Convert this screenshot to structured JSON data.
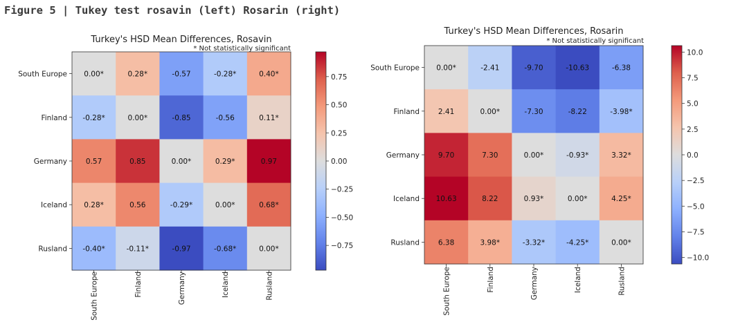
{
  "figure_title": "Figure 5 | Tukey test rosavin (left) Rosarin (right)",
  "chart_data": [
    {
      "type": "heatmap",
      "title": "Turkey's HSD Mean Differences, Rosavin",
      "subtitle": "* Not statistically significant",
      "rows": [
        "South Europe",
        "Finland",
        "Germany",
        "Iceland",
        "Rusland"
      ],
      "cols": [
        "South Europe",
        "Finland",
        "Germany",
        "Iceland",
        "Rusland"
      ],
      "values": [
        [
          0.0,
          0.28,
          -0.57,
          -0.28,
          0.4
        ],
        [
          -0.28,
          0.0,
          -0.85,
          -0.56,
          0.11
        ],
        [
          0.57,
          0.85,
          0.0,
          0.29,
          0.97
        ],
        [
          0.28,
          0.56,
          -0.29,
          0.0,
          0.68
        ],
        [
          -0.4,
          -0.11,
          -0.97,
          -0.68,
          0.0
        ]
      ],
      "labels": [
        [
          "0.00*",
          "0.28*",
          "-0.57",
          "-0.28*",
          "0.40*"
        ],
        [
          "-0.28*",
          "0.00*",
          "-0.85",
          "-0.56",
          "0.11*"
        ],
        [
          "0.57",
          "0.85",
          "0.00*",
          "0.29*",
          "0.97"
        ],
        [
          "0.28*",
          "0.56",
          "-0.29*",
          "0.00*",
          "0.68*"
        ],
        [
          "-0.40*",
          "-0.11*",
          "-0.97",
          "-0.68*",
          "0.00*"
        ]
      ],
      "vmin": -0.97,
      "vmax": 0.97,
      "colormap": "coolwarm",
      "colorbar_ticks": [
        "0.75",
        "0.50",
        "0.25",
        "0.00",
        "−0.25",
        "−0.50",
        "−0.75"
      ],
      "colorbar_tick_values": [
        0.75,
        0.5,
        0.25,
        0,
        -0.25,
        -0.5,
        -0.75
      ]
    },
    {
      "type": "heatmap",
      "title": "Turkey's HSD Mean Differences, Rosarin",
      "subtitle": "* Not statistically significant",
      "rows": [
        "South Europe",
        "Finland",
        "Germany",
        "Iceland",
        "Rusland"
      ],
      "cols": [
        "South Europe",
        "Finland",
        "Germany",
        "Iceland",
        "Rusland"
      ],
      "values": [
        [
          0.0,
          -2.41,
          -9.7,
          -10.63,
          -6.38
        ],
        [
          2.41,
          0.0,
          -7.3,
          -8.22,
          -3.98
        ],
        [
          9.7,
          7.3,
          0.0,
          -0.93,
          3.32
        ],
        [
          10.63,
          8.22,
          0.93,
          0.0,
          4.25
        ],
        [
          6.38,
          3.98,
          -3.32,
          -4.25,
          0.0
        ]
      ],
      "labels": [
        [
          "0.00*",
          "-2.41",
          "-9.70",
          "-10.63",
          "-6.38"
        ],
        [
          "2.41",
          "0.00*",
          "-7.30",
          "-8.22",
          "-3.98*"
        ],
        [
          "9.70",
          "7.30",
          "0.00*",
          "-0.93*",
          "3.32*"
        ],
        [
          "10.63",
          "8.22",
          "0.93*",
          "0.00*",
          "4.25*"
        ],
        [
          "6.38",
          "3.98*",
          "-3.32*",
          "-4.25*",
          "0.00*"
        ]
      ],
      "vmin": -10.63,
      "vmax": 10.63,
      "colormap": "coolwarm",
      "colorbar_ticks": [
        "10.0",
        "7.5",
        "5.0",
        "2.5",
        "0.0",
        "−2.5",
        "−5.0",
        "−7.5",
        "−10.0"
      ],
      "colorbar_tick_values": [
        10,
        7.5,
        5,
        2.5,
        0,
        -2.5,
        -5,
        -7.5,
        -10
      ]
    }
  ]
}
